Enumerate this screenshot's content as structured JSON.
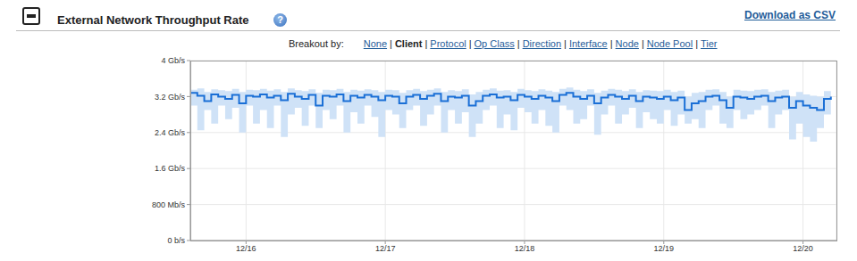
{
  "page": {
    "download": "Download as CSV",
    "help": "?",
    "breakout_label": "Breakout by:",
    "breakout_options": [
      "None",
      "Client",
      "Protocol",
      "Op Class",
      "Direction",
      "Interface",
      "Node",
      "Node Pool",
      "Tier"
    ],
    "selected": "Client",
    "separator": "|"
  },
  "chart_data": {
    "type": "line",
    "title": "External Network Throughput Rate",
    "line_style": "step",
    "color": "#1a6fd6",
    "band_color": "#cfe2f7",
    "grid": true,
    "xlim": [
      15.6,
      20.24
    ],
    "xticks": [
      {
        "value": 16,
        "label": "12/16"
      },
      {
        "value": 17,
        "label": "12/17"
      },
      {
        "value": 18,
        "label": "12/18"
      },
      {
        "value": 19,
        "label": "12/19"
      },
      {
        "value": 20,
        "label": "12/20"
      }
    ],
    "ylim": [
      0,
      4
    ],
    "yticks": [
      {
        "value": 0,
        "label": "0 b/s"
      },
      {
        "value": 0.8,
        "label": "800 Mb/s"
      },
      {
        "value": 1.6,
        "label": "1.6 Gb/s"
      },
      {
        "value": 2.4,
        "label": "2.4 Gb/s"
      },
      {
        "value": 3.2,
        "label": "3.2 Gb/s"
      },
      {
        "value": 4,
        "label": "4 Gb/s"
      }
    ],
    "x": [
      15.6,
      15.65,
      15.7,
      15.75,
      15.8,
      15.85,
      15.9,
      15.95,
      16.0,
      16.05,
      16.1,
      16.15,
      16.2,
      16.25,
      16.3,
      16.35,
      16.4,
      16.45,
      16.5,
      16.55,
      16.6,
      16.65,
      16.7,
      16.75,
      16.8,
      16.85,
      16.9,
      16.95,
      17.0,
      17.05,
      17.1,
      17.15,
      17.2,
      17.25,
      17.3,
      17.35,
      17.4,
      17.45,
      17.5,
      17.55,
      17.6,
      17.65,
      17.7,
      17.75,
      17.8,
      17.85,
      17.9,
      17.95,
      18.0,
      18.05,
      18.1,
      18.15,
      18.2,
      18.25,
      18.3,
      18.35,
      18.4,
      18.45,
      18.5,
      18.55,
      18.6,
      18.65,
      18.7,
      18.75,
      18.8,
      18.85,
      18.9,
      18.95,
      19.0,
      19.05,
      19.1,
      19.15,
      19.2,
      19.25,
      19.3,
      19.35,
      19.4,
      19.45,
      19.5,
      19.55,
      19.6,
      19.65,
      19.7,
      19.75,
      19.8,
      19.85,
      19.9,
      19.95,
      20.0,
      20.05,
      20.1,
      20.15,
      20.2
    ],
    "values": [
      3.28,
      3.22,
      3.1,
      3.25,
      3.2,
      3.15,
      3.24,
      3.05,
      3.22,
      3.2,
      3.25,
      3.18,
      3.22,
      3.12,
      3.26,
      3.2,
      3.15,
      3.24,
      3.0,
      3.22,
      3.2,
      3.25,
      3.1,
      3.22,
      3.18,
      3.24,
      3.2,
      3.12,
      3.22,
      3.2,
      3.05,
      3.2,
      3.24,
      3.15,
      3.22,
      3.26,
      3.1,
      3.2,
      3.18,
      3.22,
      3.0,
      3.1,
      3.22,
      3.25,
      3.18,
      3.2,
      3.12,
      3.24,
      3.2,
      3.15,
      3.22,
      3.18,
      3.1,
      3.24,
      3.28,
      3.2,
      3.15,
      3.22,
      3.05,
      3.18,
      3.24,
      3.2,
      3.15,
      3.22,
      3.1,
      3.2,
      3.18,
      3.15,
      3.2,
      3.12,
      3.18,
      2.9,
      3.05,
      3.1,
      3.2,
      3.22,
      3.12,
      2.95,
      3.2,
      3.18,
      3.15,
      3.2,
      3.22,
      3.1,
      3.18,
      3.2,
      2.95,
      3.1,
      3.0,
      2.95,
      2.9,
      3.15,
      3.2
    ],
    "range_low": [
      3.0,
      2.45,
      2.9,
      2.6,
      3.0,
      2.7,
      2.95,
      2.4,
      3.0,
      2.6,
      2.9,
      2.5,
      3.0,
      2.3,
      2.8,
      2.95,
      2.55,
      3.0,
      2.5,
      2.9,
      2.7,
      3.0,
      2.4,
      2.85,
      2.6,
      3.0,
      2.75,
      2.3,
      2.9,
      2.8,
      2.5,
      2.9,
      3.0,
      2.55,
      2.8,
      3.0,
      2.4,
      2.9,
      2.6,
      2.85,
      2.3,
      2.6,
      2.9,
      3.0,
      2.5,
      2.8,
      2.45,
      2.95,
      2.85,
      2.6,
      2.9,
      2.55,
      2.4,
      3.0,
      2.9,
      2.6,
      2.7,
      3.0,
      2.35,
      2.8,
      3.0,
      2.6,
      2.8,
      2.95,
      2.5,
      2.85,
      2.7,
      2.6,
      2.9,
      2.55,
      2.8,
      2.6,
      2.7,
      2.5,
      2.9,
      3.0,
      2.6,
      2.5,
      2.9,
      2.7,
      2.8,
      2.9,
      3.0,
      2.5,
      2.8,
      2.9,
      2.25,
      2.6,
      2.3,
      2.2,
      2.5,
      2.8,
      3.0
    ],
    "range_high": [
      3.35,
      3.38,
      3.3,
      3.36,
      3.34,
      3.32,
      3.37,
      3.3,
      3.35,
      3.34,
      3.37,
      3.33,
      3.36,
      3.3,
      3.38,
      3.34,
      3.32,
      3.36,
      3.28,
      3.35,
      3.34,
      3.37,
      3.3,
      3.35,
      3.33,
      3.36,
      3.34,
      3.3,
      3.35,
      3.34,
      3.28,
      3.34,
      3.37,
      3.32,
      3.35,
      3.38,
      3.3,
      3.34,
      3.32,
      3.36,
      3.25,
      3.3,
      3.35,
      3.38,
      3.33,
      3.34,
      3.3,
      3.37,
      3.34,
      3.32,
      3.36,
      3.33,
      3.3,
      3.37,
      3.4,
      3.35,
      3.32,
      3.36,
      3.28,
      3.33,
      3.37,
      3.35,
      3.32,
      3.36,
      3.3,
      3.34,
      3.33,
      3.32,
      3.35,
      3.3,
      3.33,
      3.2,
      3.28,
      3.3,
      3.35,
      3.36,
      3.3,
      3.2,
      3.35,
      3.33,
      3.32,
      3.35,
      3.36,
      3.3,
      3.33,
      3.35,
      3.2,
      3.3,
      3.25,
      3.22,
      3.2,
      3.32,
      3.35
    ]
  }
}
